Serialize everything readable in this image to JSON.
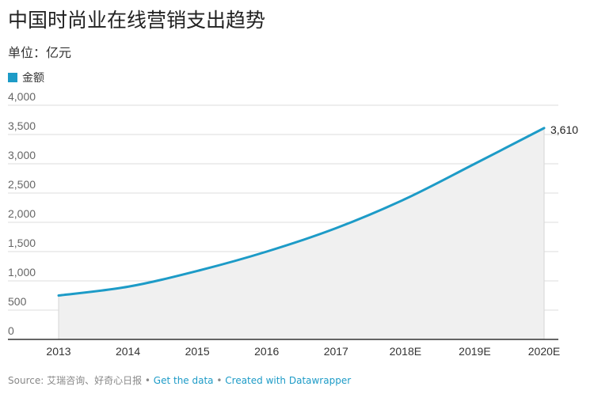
{
  "title": "中国时尚业在线营销支出趋势",
  "subtitle": "单位：亿元",
  "colors": {
    "line": "#1d9bc7",
    "area": "#f0f0f0",
    "grid": "#dddddd",
    "axis": "#333333"
  },
  "chart_data": {
    "type": "area",
    "categories": [
      "2013",
      "2014",
      "2015",
      "2016",
      "2017",
      "2018E",
      "2019E",
      "2020E"
    ],
    "series": [
      {
        "name": "金额",
        "values": [
          750,
          900,
          1170,
          1500,
          1900,
          2400,
          3000,
          3610
        ]
      }
    ],
    "ylim": [
      0,
      4000
    ],
    "yticks": [
      {
        "value": 0,
        "label": "0"
      },
      {
        "value": 500,
        "label": "500"
      },
      {
        "value": 1000,
        "label": "1,000"
      },
      {
        "value": 1500,
        "label": "1,500"
      },
      {
        "value": 2000,
        "label": "2,000"
      },
      {
        "value": 2500,
        "label": "2,500"
      },
      {
        "value": 3000,
        "label": "3,000"
      },
      {
        "value": 3500,
        "label": "3,500"
      },
      {
        "value": 4000,
        "label": "4,000"
      }
    ],
    "end_label": "3,610",
    "grid": true,
    "legend": "top-left"
  },
  "footer": {
    "source": "Source: 艾瑞咨询、好奇心日报",
    "sep1": " • ",
    "get_data": "Get the data",
    "sep2": " • ",
    "created_with": "Created with Datawrapper"
  }
}
